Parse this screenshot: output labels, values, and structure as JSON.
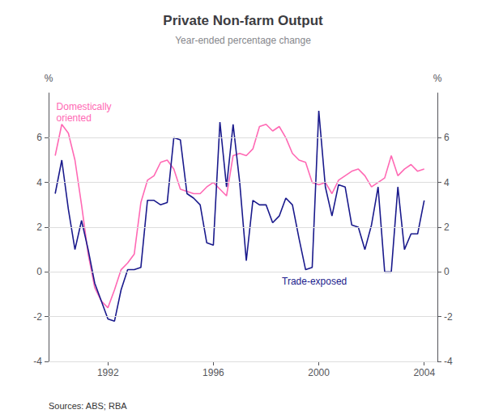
{
  "chart_data": {
    "type": "line",
    "title": "Private Non-farm Output",
    "subtitle": "Year-ended percentage change",
    "source": "Sources: ABS; RBA",
    "ylabel": "%",
    "y2label": "%",
    "x": [
      1990.0,
      1990.25,
      1990.5,
      1990.75,
      1991.0,
      1991.25,
      1991.5,
      1991.75,
      1992.0,
      1992.25,
      1992.5,
      1992.75,
      1993.0,
      1993.25,
      1993.5,
      1993.75,
      1994.0,
      1994.25,
      1994.5,
      1994.75,
      1995.0,
      1995.25,
      1995.5,
      1995.75,
      1996.0,
      1996.25,
      1996.5,
      1996.75,
      1997.0,
      1997.25,
      1997.5,
      1997.75,
      1998.0,
      1998.25,
      1998.5,
      1998.75,
      1999.0,
      1999.25,
      1999.5,
      1999.75,
      2000.0,
      2000.25,
      2000.5,
      2000.75,
      2001.0,
      2001.25,
      2001.5,
      2001.75,
      2002.0,
      2002.25,
      2002.5,
      2002.75,
      2003.0,
      2003.25,
      2003.5,
      2003.75,
      2004.0
    ],
    "series": [
      {
        "name": "Domestically\noriented",
        "color": "#FF69B4",
        "values": [
          5.2,
          6.6,
          6.2,
          5.0,
          3.0,
          0.8,
          -0.7,
          -1.3,
          -1.6,
          -0.8,
          0.1,
          0.4,
          0.8,
          3.1,
          4.1,
          4.3,
          4.9,
          5.0,
          4.6,
          3.7,
          3.6,
          3.5,
          3.5,
          3.8,
          4.0,
          3.7,
          3.4,
          5.2,
          5.3,
          5.2,
          5.5,
          6.5,
          6.6,
          6.3,
          6.5,
          6.0,
          5.3,
          5.0,
          4.9,
          4.0,
          3.9,
          4.0,
          3.5,
          4.1,
          4.3,
          4.5,
          4.6,
          4.3,
          3.8,
          4.0,
          4.2,
          5.2,
          4.3,
          4.6,
          4.8,
          4.5,
          4.6
        ]
      },
      {
        "name": "Trade-exposed",
        "color": "#1a1a8c",
        "values": [
          3.5,
          5.0,
          2.8,
          1.0,
          2.3,
          1.0,
          -0.5,
          -1.3,
          -2.1,
          -2.2,
          -0.8,
          0.1,
          0.1,
          0.2,
          3.2,
          3.2,
          3.0,
          3.1,
          6.0,
          5.9,
          3.5,
          3.3,
          3.0,
          1.3,
          1.2,
          6.7,
          3.8,
          6.6,
          4.0,
          0.5,
          3.2,
          3.0,
          3.0,
          2.2,
          2.5,
          3.3,
          3.0,
          1.5,
          0.1,
          0.2,
          7.2,
          3.8,
          2.5,
          3.9,
          3.8,
          2.1,
          2.0,
          1.0,
          2.1,
          3.8,
          0.0,
          0.0,
          3.8,
          1.0,
          1.7,
          1.7,
          3.2
        ]
      }
    ],
    "xlim": [
      1989.75,
      2004.5
    ],
    "xticks": [
      1992,
      1996,
      2000,
      2004
    ],
    "ylim": [
      -4,
      8
    ],
    "yticks": [
      -4,
      -2,
      0,
      2,
      4,
      6
    ],
    "y2lim": [
      -4,
      8
    ],
    "y2ticks": [
      -4,
      -2,
      0,
      2,
      4,
      6
    ],
    "grid": true
  }
}
